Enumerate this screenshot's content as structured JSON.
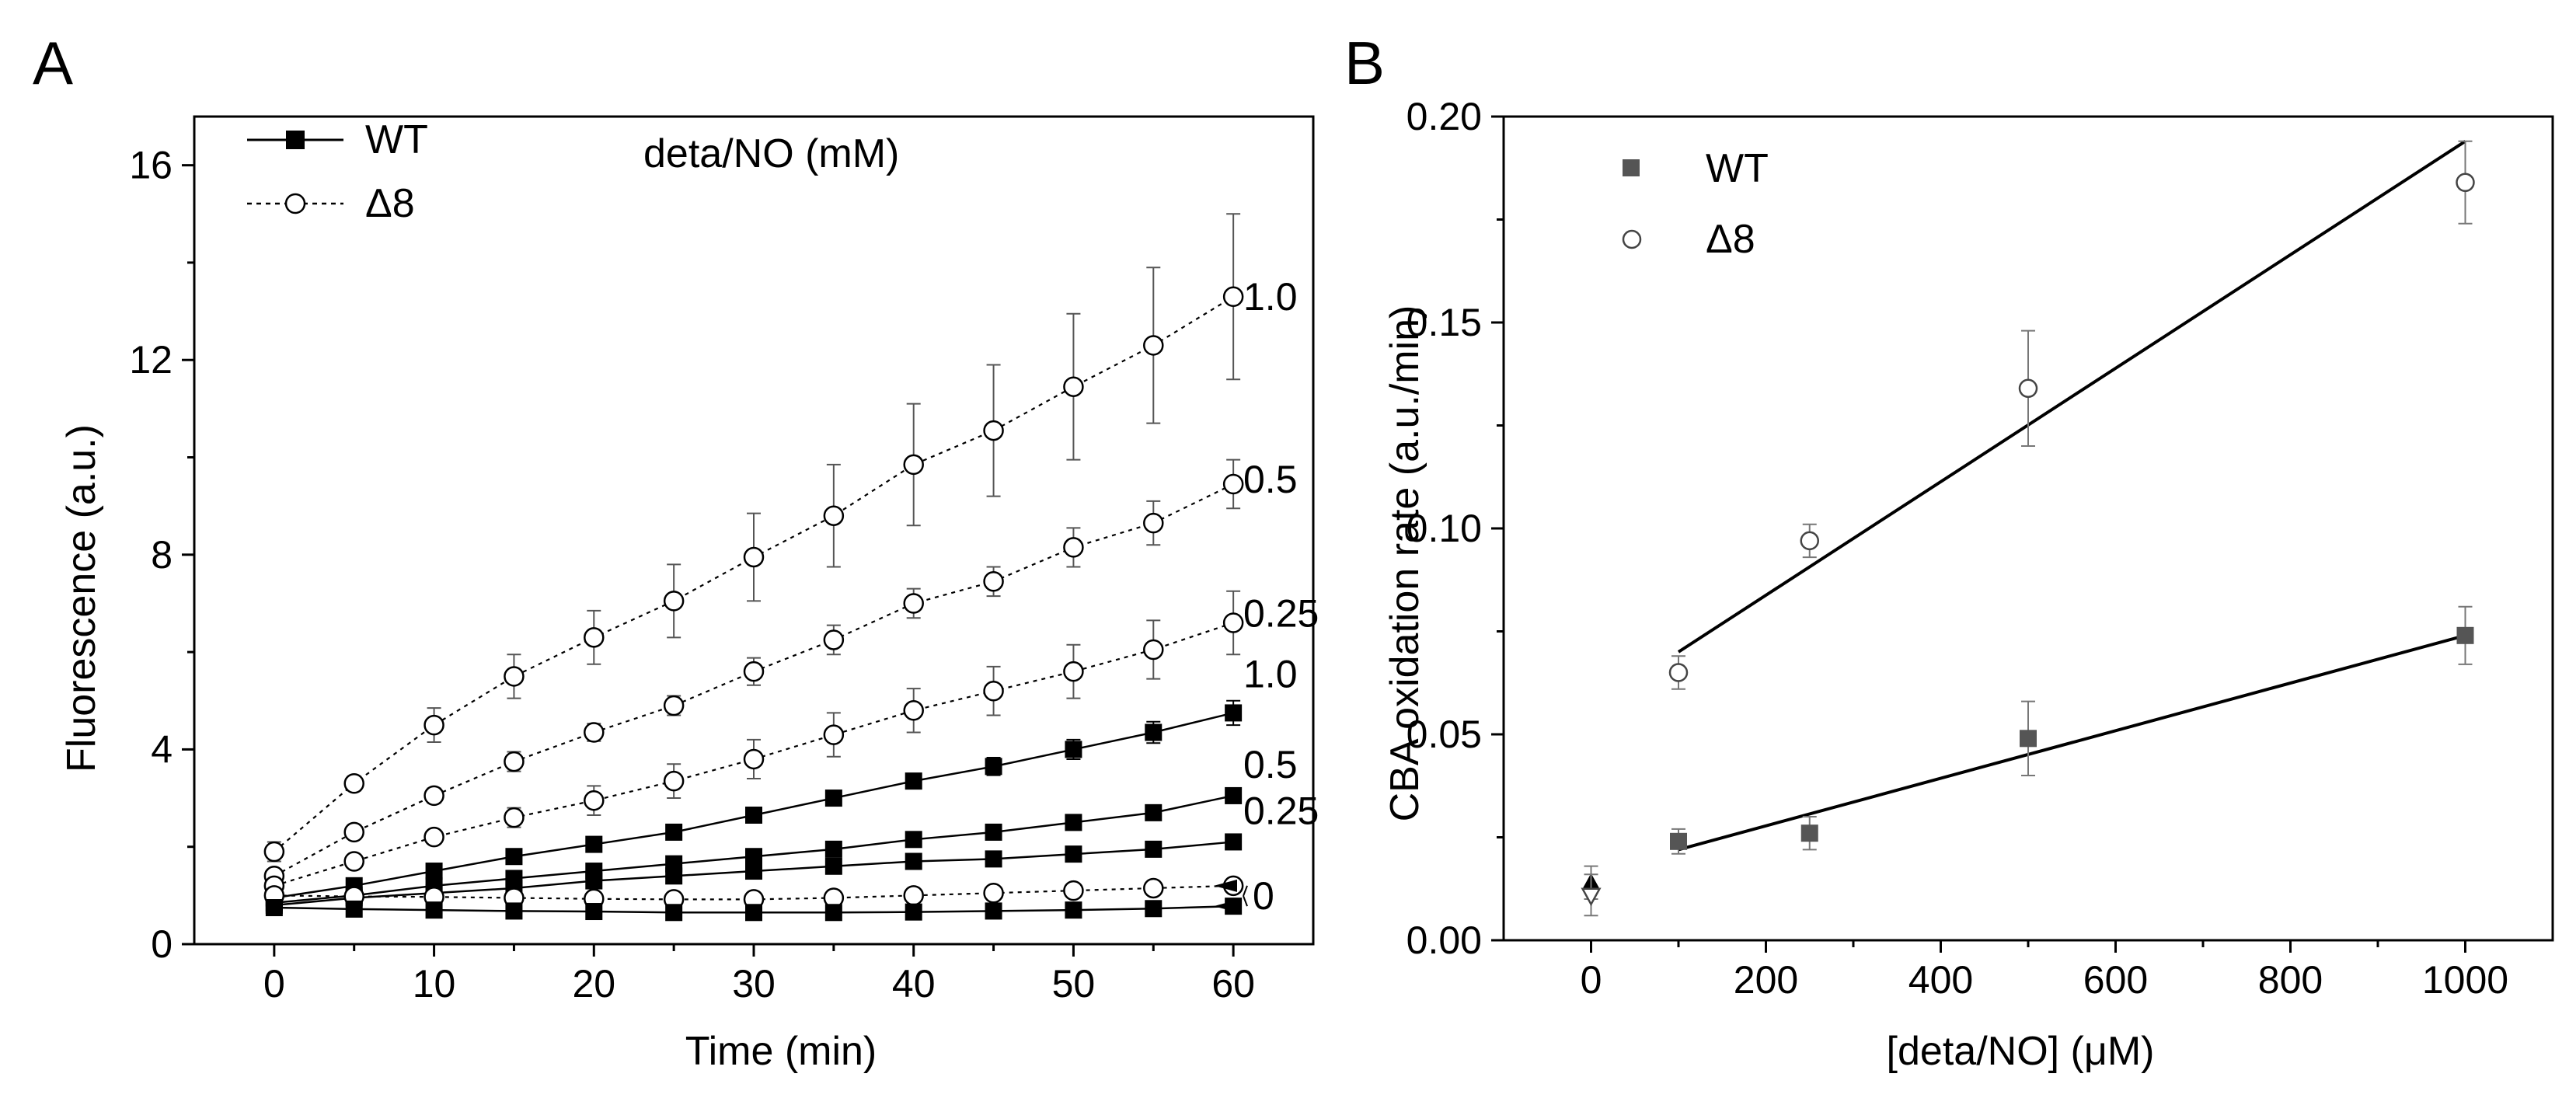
{
  "chart_data": [
    {
      "panel": "A",
      "type": "line",
      "panel_label": "A",
      "title": "deta/NO (mM)",
      "xlabel": "Time (min)",
      "ylabel": "Fluorescence (a.u.)",
      "xlim": [
        -5,
        65
      ],
      "ylim": [
        0,
        17
      ],
      "xticks": [
        0,
        10,
        20,
        30,
        40,
        50,
        60
      ],
      "yticks": [
        0,
        4,
        8,
        12,
        16
      ],
      "x": [
        0,
        5,
        10,
        15,
        20,
        25,
        30,
        35,
        40,
        45,
        50,
        55,
        60
      ],
      "legend": [
        {
          "name": "WT",
          "style": "solid",
          "marker": "square-filled"
        },
        {
          "name": "Δ8",
          "style": "dotted",
          "marker": "circle-open"
        }
      ],
      "series": [
        {
          "name": "Δ8 1.0",
          "group": "Δ8",
          "label": "1.0",
          "values": [
            1.9,
            3.3,
            4.5,
            5.5,
            6.3,
            7.05,
            7.95,
            8.8,
            9.85,
            10.55,
            11.45,
            12.3,
            13.3
          ],
          "errors": [
            0.2,
            0.15,
            0.35,
            0.45,
            0.55,
            0.75,
            0.9,
            1.05,
            1.25,
            1.35,
            1.5,
            1.6,
            1.7
          ]
        },
        {
          "name": "Δ8 0.5",
          "group": "Δ8",
          "label": "0.5",
          "values": [
            1.4,
            2.3,
            3.05,
            3.75,
            4.35,
            4.9,
            5.6,
            6.25,
            7.0,
            7.45,
            8.15,
            8.65,
            9.45
          ],
          "errors": [
            0.1,
            0.12,
            0.15,
            0.2,
            0.18,
            0.2,
            0.28,
            0.3,
            0.3,
            0.3,
            0.4,
            0.45,
            0.5
          ]
        },
        {
          "name": "Δ8 0.25",
          "group": "Δ8",
          "label": "0.25",
          "values": [
            1.2,
            1.7,
            2.2,
            2.6,
            2.95,
            3.35,
            3.8,
            4.3,
            4.8,
            5.2,
            5.6,
            6.05,
            6.6
          ],
          "errors": [
            0.08,
            0.1,
            0.12,
            0.2,
            0.3,
            0.35,
            0.4,
            0.45,
            0.45,
            0.5,
            0.55,
            0.6,
            0.65
          ]
        },
        {
          "name": "WT 1.0",
          "group": "WT",
          "label": "1.0",
          "values": [
            0.95,
            1.2,
            1.5,
            1.8,
            2.05,
            2.3,
            2.65,
            3.0,
            3.35,
            3.65,
            4.0,
            4.35,
            4.75
          ],
          "errors": [
            0.05,
            0.06,
            0.07,
            0.08,
            0.1,
            0.1,
            0.12,
            0.15,
            0.15,
            0.18,
            0.2,
            0.22,
            0.25
          ]
        },
        {
          "name": "WT 0.5",
          "group": "WT",
          "label": "0.5",
          "values": [
            0.85,
            1.0,
            1.2,
            1.35,
            1.5,
            1.65,
            1.8,
            1.95,
            2.15,
            2.3,
            2.5,
            2.7,
            3.05
          ],
          "errors": [
            0.05,
            0.05,
            0.06,
            0.06,
            0.07,
            0.07,
            0.08,
            0.08,
            0.09,
            0.1,
            0.1,
            0.1,
            0.12
          ]
        },
        {
          "name": "WT 0.25",
          "group": "WT",
          "label": "0.25",
          "values": [
            0.8,
            0.95,
            1.05,
            1.15,
            1.3,
            1.4,
            1.5,
            1.6,
            1.7,
            1.75,
            1.85,
            1.95,
            2.1
          ],
          "errors": [
            0.04,
            0.04,
            0.05,
            0.05,
            0.05,
            0.06,
            0.06,
            0.06,
            0.07,
            0.07,
            0.07,
            0.08,
            0.08
          ]
        },
        {
          "name": "Δ8 0",
          "group": "Δ8",
          "label": "0",
          "values": [
            1.0,
            0.98,
            0.97,
            0.95,
            0.93,
            0.92,
            0.92,
            0.95,
            1.0,
            1.05,
            1.1,
            1.15,
            1.2
          ],
          "errors": [
            0.05,
            0.05,
            0.05,
            0.05,
            0.05,
            0.05,
            0.05,
            0.05,
            0.05,
            0.05,
            0.05,
            0.05,
            0.05
          ]
        },
        {
          "name": "WT 0",
          "group": "WT",
          "label": "0",
          "values": [
            0.75,
            0.72,
            0.7,
            0.68,
            0.67,
            0.65,
            0.65,
            0.65,
            0.66,
            0.68,
            0.7,
            0.73,
            0.78
          ],
          "errors": [
            0.03,
            0.03,
            0.03,
            0.03,
            0.03,
            0.03,
            0.03,
            0.03,
            0.03,
            0.03,
            0.03,
            0.03,
            0.03
          ]
        }
      ]
    },
    {
      "panel": "B",
      "type": "scatter",
      "panel_label": "B",
      "title": "",
      "xlabel": "[deta/NO] (μM)",
      "ylabel": "CBA oxidation rate (a.u./min)",
      "xlim": [
        -100,
        1100
      ],
      "ylim": [
        0,
        0.2
      ],
      "xticks": [
        0,
        200,
        400,
        600,
        800,
        1000
      ],
      "yticks": [
        0.0,
        0.05,
        0.1,
        0.15,
        0.2
      ],
      "ytick_labels": [
        "0.00",
        "0.05",
        "0.10",
        "0.15",
        "0.20"
      ],
      "legend": [
        {
          "name": "WT",
          "marker": "square-filled"
        },
        {
          "name": "Δ8",
          "marker": "circle-open"
        }
      ],
      "series": [
        {
          "name": "WT",
          "marker": "square-filled",
          "x": [
            100,
            250,
            500,
            1000
          ],
          "values": [
            0.024,
            0.026,
            0.049,
            0.074
          ],
          "errors": [
            0.003,
            0.004,
            0.009,
            0.007
          ],
          "fit": [
            [
              100,
              0.022
            ],
            [
              1000,
              0.074
            ]
          ]
        },
        {
          "name": "Δ8",
          "marker": "circle-open",
          "x": [
            100,
            250,
            500,
            1000
          ],
          "values": [
            0.065,
            0.097,
            0.134,
            0.184
          ],
          "errors": [
            0.004,
            0.004,
            0.014,
            0.01
          ],
          "fit": [
            [
              100,
              0.07
            ],
            [
              1000,
              0.194
            ]
          ]
        }
      ],
      "zero_points": [
        {
          "name": "WT 0",
          "marker": "triangle-up-filled",
          "x": 0,
          "value": 0.014,
          "error": 0.004
        },
        {
          "name": "Δ8 0",
          "marker": "triangle-down-open",
          "x": 0,
          "value": 0.011,
          "error": 0.005
        }
      ]
    }
  ]
}
